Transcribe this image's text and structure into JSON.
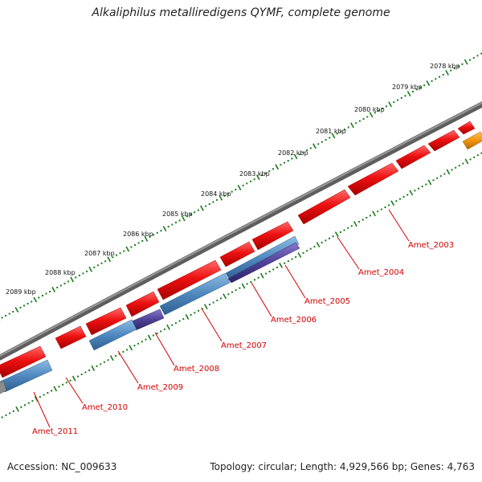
{
  "title": "Alkaliphilus metalliredigens QYMF, complete genome",
  "footer": {
    "accession": "Accession: NC_009633",
    "topology": "Topology: circular; Length: 4,929,566 bp; Genes: 4,763"
  },
  "colors": {
    "backbone": "#777777",
    "tick": "#1a7a1a",
    "gene_label": "#d10000",
    "cds_forward": "#ee1111",
    "cds_reverse_blue": "#4f88bf",
    "cds_reverse_purple": "#4f4196",
    "cds_orange": "#f09410"
  },
  "scale": {
    "unit": "kbp",
    "labels": [
      "2078 kbp",
      "2079 kbp",
      "2080 kbp",
      "2081 kbp",
      "2082 kbp",
      "2083 kbp",
      "2084 kbp",
      "2085 kbp",
      "2086 kbp",
      "2087 kbp",
      "2088 kbp",
      "2089 kbp"
    ]
  },
  "genes": [
    {
      "label": "Amet_2003"
    },
    {
      "label": "Amet_2004"
    },
    {
      "label": "Amet_2005"
    },
    {
      "label": "Amet_2006"
    },
    {
      "label": "Amet_2007"
    },
    {
      "label": "Amet_2008"
    },
    {
      "label": "Amet_2009"
    },
    {
      "label": "Amet_2010"
    },
    {
      "label": "Amet_2011"
    }
  ]
}
